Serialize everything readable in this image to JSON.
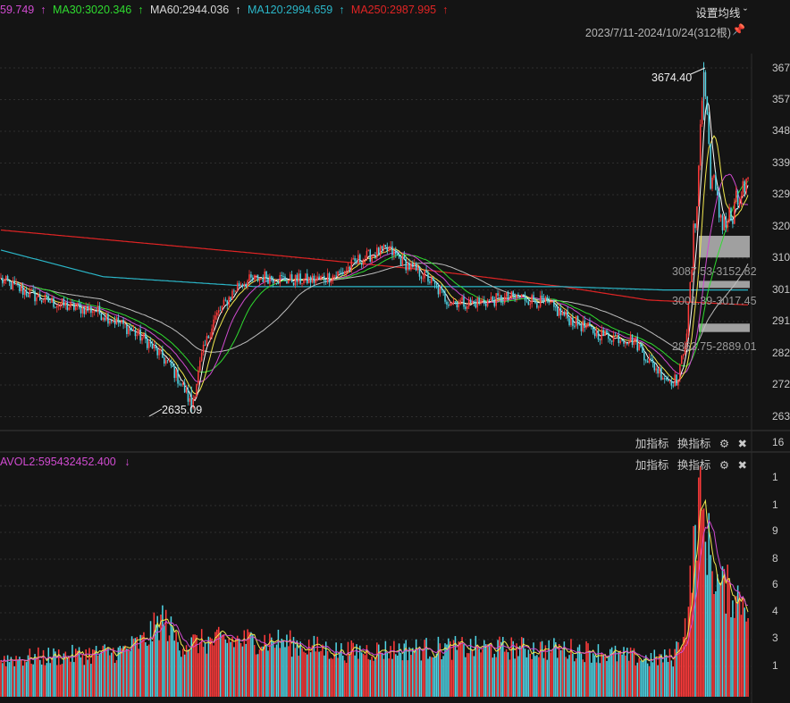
{
  "legend": {
    "ma_partial": "59.749",
    "ma30": "MA30:3020.346",
    "ma60": "MA60:2944.036",
    "ma120": "MA120:2994.659",
    "ma250": "MA250:2987.995",
    "arrow": "↑"
  },
  "header": {
    "settings_label": "设置均线 ˇ",
    "range_label": "2023/7/11-2024/10/24(312根)",
    "pin_icon": "pin-icon"
  },
  "panel_tools": {
    "add_indicator": "加指标",
    "switch_indicator": "换指标",
    "gear": "⚙",
    "close": "✖"
  },
  "volume_legend": {
    "label": "AVOL2:595432452.400",
    "arrow": "↓"
  },
  "annotations": {
    "high": "3674.40",
    "low": "2635.09"
  },
  "zones": [
    {
      "label": "3087.53-3152.82"
    },
    {
      "label": "3001.39-3017.45"
    },
    {
      "label": "2863.75-2889.01"
    }
  ],
  "price_ticks": [
    "367",
    "357",
    "348",
    "339",
    "329",
    "320",
    "310",
    "301",
    "291",
    "282",
    "272",
    "263"
  ],
  "price_partial_tick": "16",
  "volume_ticks": [
    "1",
    "1",
    "9",
    "8",
    "6",
    "4",
    "3",
    "1"
  ],
  "colors": {
    "up": "#ff3b3b",
    "down": "#4fd5e6",
    "ma5": "#ffffff",
    "ma10": "#f2e94e",
    "ma20": "#d04bd0",
    "ma30": "#2fdb2f",
    "ma60": "#bdbdbd",
    "ma120": "#2bb7c9",
    "ma250": "#e02424",
    "legend_ma": "#d04bd0"
  },
  "chart_data": {
    "type": "candlestick",
    "x_start": "2023-07-11",
    "x_end": "2024-10-24",
    "bars_count": 312,
    "y_price_range": [
      2600,
      3700
    ],
    "price_anchors": [
      [
        0,
        3020
      ],
      [
        10,
        2995
      ],
      [
        25,
        2960
      ],
      [
        40,
        2940
      ],
      [
        55,
        2930
      ],
      [
        70,
        2890
      ],
      [
        85,
        2840
      ],
      [
        100,
        2760
      ],
      [
        108,
        2690
      ],
      [
        112,
        2640
      ],
      [
        118,
        2790
      ],
      [
        125,
        2900
      ],
      [
        140,
        3010
      ],
      [
        155,
        3030
      ],
      [
        170,
        3020
      ],
      [
        185,
        3020
      ],
      [
        200,
        3040
      ],
      [
        210,
        3080
      ],
      [
        220,
        3100
      ],
      [
        228,
        3110
      ],
      [
        240,
        3060
      ],
      [
        250,
        3030
      ],
      [
        262,
        2960
      ],
      [
        275,
        2950
      ],
      [
        290,
        2960
      ],
      [
        305,
        2970
      ],
      [
        320,
        2950
      ],
      [
        335,
        2900
      ],
      [
        350,
        2860
      ],
      [
        360,
        2850
      ],
      [
        372,
        2840
      ],
      [
        382,
        2770
      ],
      [
        392,
        2720
      ],
      [
        398,
        2720
      ],
      [
        403,
        2870
      ],
      [
        408,
        3200
      ],
      [
        413,
        3650
      ],
      [
        417,
        3350
      ],
      [
        421,
        3230
      ],
      [
        426,
        3200
      ],
      [
        430,
        3200
      ],
      [
        435,
        3280
      ],
      [
        440,
        3270
      ]
    ],
    "ma250_anchors": [
      [
        0,
        3170
      ],
      [
        150,
        3100
      ],
      [
        250,
        3050
      ],
      [
        330,
        3000
      ],
      [
        380,
        2960
      ],
      [
        440,
        2945
      ]
    ],
    "ma120_anchors": [
      [
        0,
        3110
      ],
      [
        60,
        3030
      ],
      [
        150,
        3000
      ],
      [
        250,
        3000
      ],
      [
        330,
        3000
      ],
      [
        390,
        2990
      ],
      [
        440,
        2990
      ]
    ],
    "volume_range": [
      0,
      1200
    ],
    "volume_anchors": [
      [
        0,
        200
      ],
      [
        40,
        220
      ],
      [
        70,
        240
      ],
      [
        85,
        300
      ],
      [
        95,
        420
      ],
      [
        105,
        280
      ],
      [
        130,
        300
      ],
      [
        160,
        300
      ],
      [
        200,
        240
      ],
      [
        230,
        250
      ],
      [
        260,
        260
      ],
      [
        300,
        260
      ],
      [
        340,
        250
      ],
      [
        380,
        200
      ],
      [
        395,
        210
      ],
      [
        403,
        400
      ],
      [
        410,
        1050
      ],
      [
        416,
        800
      ],
      [
        421,
        600
      ],
      [
        430,
        550
      ],
      [
        440,
        500
      ]
    ]
  }
}
